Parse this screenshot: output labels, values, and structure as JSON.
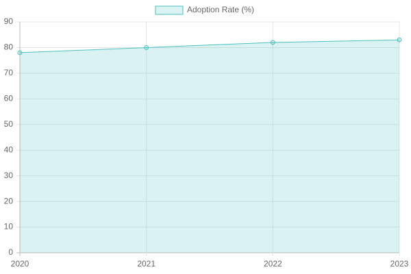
{
  "chart_data": {
    "type": "area",
    "categories": [
      "2020",
      "2021",
      "2022",
      "2023"
    ],
    "series": [
      {
        "name": "Adoption Rate (%)",
        "color": "#4bc0c0",
        "values": [
          78,
          80,
          82,
          83
        ]
      }
    ],
    "ylim": [
      0,
      90
    ],
    "yticks": [
      0,
      10,
      20,
      30,
      40,
      50,
      60,
      70,
      80,
      90
    ],
    "grid": true,
    "legend": "top"
  }
}
